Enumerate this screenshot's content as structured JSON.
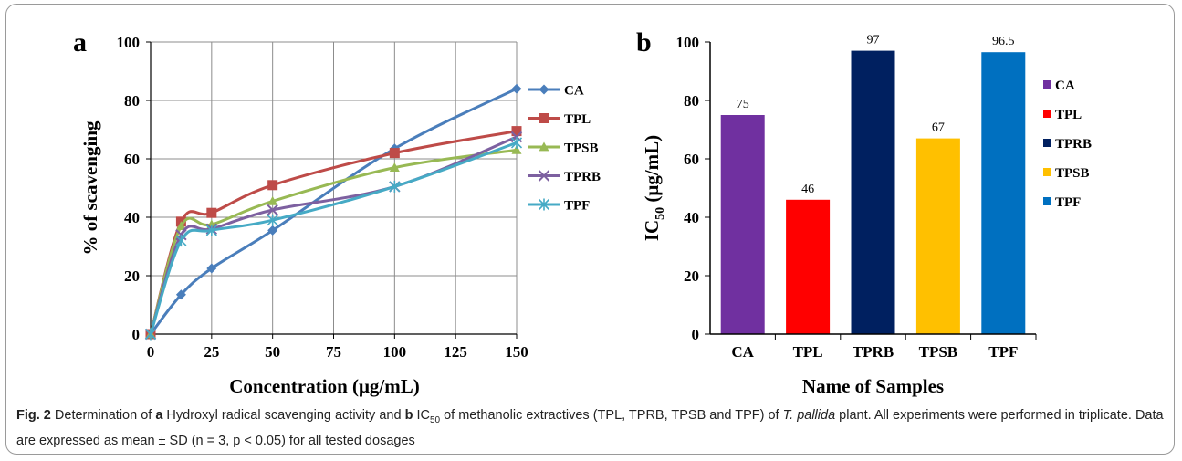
{
  "chart_data": [
    {
      "panel_label": "a",
      "type": "line",
      "xlabel": "Concentration (μg/mL)",
      "ylabel": "% of scavenging",
      "xlim": [
        0,
        150
      ],
      "ylim": [
        0,
        100
      ],
      "xticks": [
        "0",
        "25",
        "50",
        "75",
        "100",
        "125",
        "150"
      ],
      "yticks": [
        "0",
        "20",
        "40",
        "60",
        "80",
        "100"
      ],
      "grid": true,
      "legend": "right",
      "x": [
        0,
        12.5,
        25,
        50,
        100,
        150
      ],
      "series": [
        {
          "name": "CA",
          "values": [
            0,
            13.5,
            22.5,
            35.5,
            63.5,
            84
          ],
          "color": "#4a7ebb",
          "marker": "diamond"
        },
        {
          "name": "TPL",
          "values": [
            0,
            38.5,
            41.5,
            51,
            62,
            69.5
          ],
          "color": "#be4b48",
          "marker": "square"
        },
        {
          "name": "TPSB",
          "values": [
            0,
            37,
            37.5,
            45.5,
            57,
            63
          ],
          "color": "#98b954",
          "marker": "triangle"
        },
        {
          "name": "TPRB",
          "values": [
            0,
            34,
            36,
            42.5,
            50.5,
            67.5
          ],
          "color": "#7d60a0",
          "marker": "x"
        },
        {
          "name": "TPF",
          "values": [
            0,
            32,
            35.5,
            39,
            50.5,
            65.5
          ],
          "color": "#46aac5",
          "marker": "star"
        }
      ]
    },
    {
      "panel_label": "b",
      "type": "bar",
      "xlabel": "Name of Samples",
      "ylabel_main": "IC",
      "ylabel_sub": "50",
      "ylabel_rest": " (μg/mL)",
      "ylim": [
        0,
        100
      ],
      "yticks": [
        "0",
        "20",
        "40",
        "60",
        "80",
        "100"
      ],
      "grid": false,
      "legend": "right",
      "categories": [
        "CA",
        "TPL",
        "TPRB",
        "TPSB",
        "TPF"
      ],
      "values": [
        75,
        46,
        97,
        67,
        96.5
      ],
      "data_labels": [
        "75",
        "46",
        "97",
        "67",
        "96.5"
      ],
      "colors": [
        "#7030a0",
        "#ff0000",
        "#002060",
        "#ffc000",
        "#0070c0"
      ],
      "legend_order": [
        "CA",
        "TPL",
        "TPRB",
        "TPSB",
        "TPF"
      ]
    }
  ],
  "caption": {
    "fig": "Fig. 2",
    "t1": "  Determination of ",
    "a": "a",
    "t2": " Hydroxyl radical scavenging activity and ",
    "b": "b",
    "t3": " IC",
    "sub": "50",
    "t4": " of methanolic extractives (TPL, TPRB, TPSB and TPF) of ",
    "species": "T. pallida",
    "t5": " plant. All experiments were performed in triplicate. Data are expressed as mean ± SD (n = 3, p < 0.05) for all tested dosages"
  }
}
